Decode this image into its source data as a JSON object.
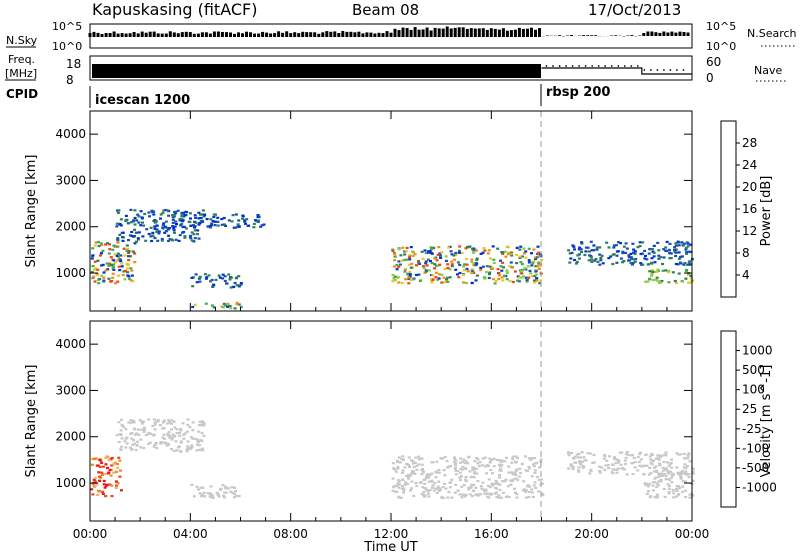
{
  "header": {
    "station": "Kapuskasing (fitACF)",
    "beam": "Beam 08",
    "date": "17/Oct/2013"
  },
  "strips": {
    "nsky_label": "N.Sky",
    "nsky_ticks": [
      "10^5",
      "10^0"
    ],
    "nsearch_label": "N.Search",
    "nsearch_ticks": [
      "10^5",
      "10^0"
    ],
    "freq_label": "Freq.",
    "freq_unit": "[MHz]",
    "freq_ticks": [
      "18",
      "8"
    ],
    "nave_label": "Nave",
    "nave_ticks": [
      "60",
      "0"
    ],
    "cpid_label": "CPID",
    "cpid_segments": [
      "icescan 1200",
      "rbsp 200"
    ]
  },
  "colors": {
    "power": [
      "#0033cc",
      "#1a4db3",
      "#2e7d5b",
      "#44aa55",
      "#88cc44",
      "#ddcc22",
      "#f08a1a",
      "#ee4411",
      "#dd0000"
    ],
    "velocity": [
      "#e61919",
      "#ee4411",
      "#f08a1a",
      "#f3b070",
      "#c8c8c8",
      "#c8c8c8",
      "#5bc35b",
      "#2f8f6f",
      "#1e5ab4",
      "#2235aa"
    ]
  },
  "chart_data": [
    {
      "type": "heatmap",
      "title": "Power",
      "xlabel": "",
      "ylabel": "Slant Range [km]",
      "xlim": [
        "00:00",
        "24:00"
      ],
      "ylim": [
        180,
        4500
      ],
      "yticks": [
        "1000",
        "2000",
        "3000",
        "4000"
      ],
      "colorbar_label": "Power [dB]",
      "colorbar_ticks": [
        "4",
        "8",
        "12",
        "16",
        "20",
        "24",
        "28"
      ],
      "colorbar_range": [
        0,
        30
      ],
      "cpid_change": "18:00",
      "regions": [
        {
          "t": [
            0.0,
            1.8
          ],
          "r": [
            800,
            1700
          ],
          "level": "mixed"
        },
        {
          "t": [
            1.0,
            4.5
          ],
          "r": [
            1700,
            2400
          ],
          "level": "low"
        },
        {
          "t": [
            3.5,
            7.0
          ],
          "r": [
            2000,
            2300
          ],
          "level": "low"
        },
        {
          "t": [
            4.0,
            6.0
          ],
          "r": [
            700,
            1000
          ],
          "level": "low"
        },
        {
          "t": [
            4.0,
            6.0
          ],
          "r": [
            250,
            380
          ],
          "level": "mixed"
        },
        {
          "t": [
            12.0,
            18.0
          ],
          "r": [
            800,
            1600
          ],
          "level": "mixed"
        },
        {
          "t": [
            19.0,
            24.0
          ],
          "r": [
            1200,
            1700
          ],
          "level": "low"
        },
        {
          "t": [
            22.0,
            24.0
          ],
          "r": [
            800,
            1100
          ],
          "level": "high"
        }
      ]
    },
    {
      "type": "heatmap",
      "title": "Velocity",
      "xlabel": "Time UT",
      "ylabel": "Slant Range [km]",
      "xlim": [
        "00:00",
        "24:00"
      ],
      "ylim": [
        180,
        4500
      ],
      "xticks": [
        "00:00",
        "04:00",
        "08:00",
        "12:00",
        "16:00",
        "20:00",
        "00:00"
      ],
      "yticks": [
        "1000",
        "2000",
        "3000",
        "4000"
      ],
      "colorbar_label": "Velocity [m s^-1]",
      "colorbar_ticks": [
        "1000",
        "500",
        "100",
        "25",
        "-25",
        "-100",
        "-500",
        "-1000"
      ],
      "cpid_change": "18:00",
      "regions": [
        {
          "t": [
            0.0,
            1.2
          ],
          "r": [
            700,
            1600
          ],
          "level": "negative"
        },
        {
          "t": [
            1.0,
            4.5
          ],
          "r": [
            1700,
            2400
          ],
          "level": "ground"
        },
        {
          "t": [
            4.0,
            6.0
          ],
          "r": [
            700,
            1000
          ],
          "level": "ground"
        },
        {
          "t": [
            12.0,
            18.0
          ],
          "r": [
            700,
            1600
          ],
          "level": "ground"
        },
        {
          "t": [
            19.0,
            24.0
          ],
          "r": [
            1200,
            1700
          ],
          "level": "ground"
        },
        {
          "t": [
            22.0,
            24.0
          ],
          "r": [
            700,
            1300
          ],
          "level": "ground"
        }
      ]
    }
  ]
}
